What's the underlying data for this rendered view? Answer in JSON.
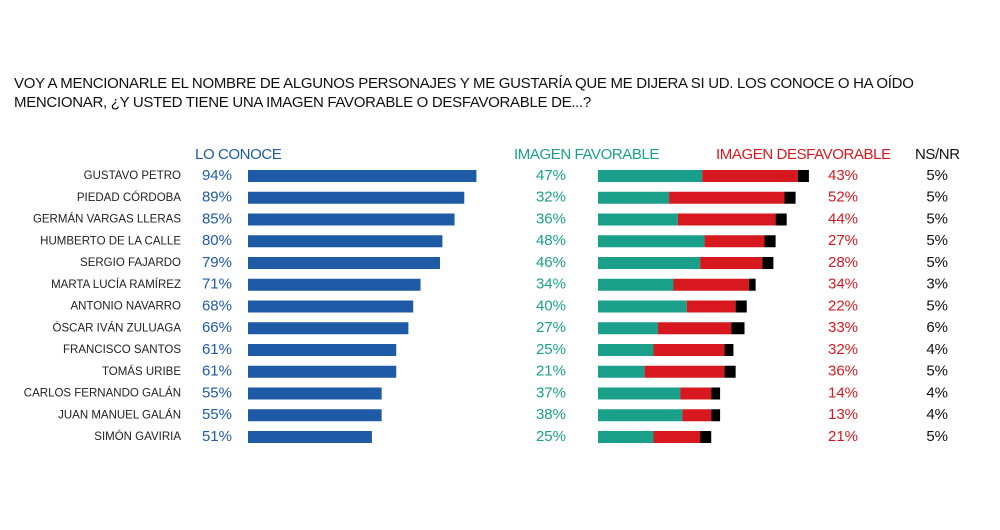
{
  "title": "VOY A MENCIONARLE EL NOMBRE DE ALGUNOS PERSONAJES Y ME GUSTARÍA QUE ME DIJERA SI UD. LOS CONOCE O HA OÍDO MENCIONAR, ¿Y USTED TIENE UNA IMAGEN FAVORABLE O DESFAVORABLE DE...?",
  "chart_data": [
    {
      "type": "bar",
      "orientation": "horizontal",
      "categories": [
        "GUSTAVO PETRO",
        "PIEDAD CÓRDOBA",
        "GERMÁN VARGAS LLERAS",
        "HUMBERTO DE LA CALLE",
        "SERGIO FAJARDO",
        "MARTA LUCÍA RAMÍREZ",
        "ANTONIO NAVARRO",
        "ÓSCAR IVÁN ZULUAGA",
        "FRANCISCO SANTOS",
        "TOMÁS URIBE",
        "CARLOS FERNANDO GALÁN",
        "JUAN MANUEL GALÁN",
        "SIMÓN GAVIRIA"
      ],
      "series": [
        {
          "name": "LO CONOCE",
          "color": "#1f5aa6",
          "values": [
            94,
            89,
            85,
            80,
            79,
            71,
            68,
            66,
            61,
            61,
            55,
            55,
            51
          ],
          "value_labels": [
            "94%",
            "89%",
            "85%",
            "80%",
            "79%",
            "71%",
            "68%",
            "66%",
            "61%",
            "61%",
            "55%",
            "55%",
            "51%"
          ]
        }
      ],
      "xlim": [
        0,
        100
      ]
    },
    {
      "type": "stacked_bar",
      "orientation": "horizontal",
      "series": [
        {
          "name": "IMAGEN FAVORABLE",
          "color": "#1aa08a",
          "values": [
            47,
            32,
            36,
            48,
            46,
            34,
            40,
            27,
            25,
            21,
            37,
            38,
            25
          ],
          "value_labels": [
            "47%",
            "32%",
            "36%",
            "48%",
            "46%",
            "34%",
            "40%",
            "27%",
            "25%",
            "21%",
            "37%",
            "38%",
            "25%"
          ]
        },
        {
          "name": "IMAGEN DESFAVORABLE",
          "color": "#d7191f",
          "values": [
            43,
            52,
            44,
            27,
            28,
            34,
            22,
            33,
            32,
            36,
            14,
            13,
            21
          ],
          "value_labels": [
            "43%",
            "52%",
            "44%",
            "27%",
            "28%",
            "34%",
            "22%",
            "33%",
            "32%",
            "36%",
            "14%",
            "13%",
            "21%"
          ]
        },
        {
          "name": "NS/NR",
          "color": "#000000",
          "values": [
            5,
            5,
            5,
            5,
            5,
            3,
            5,
            6,
            4,
            5,
            4,
            4,
            5
          ],
          "value_labels": [
            "5%",
            "5%",
            "5%",
            "5%",
            "5%",
            "3%",
            "5%",
            "6%",
            "4%",
            "5%",
            "4%",
            "4%",
            "5%"
          ]
        }
      ],
      "xlim": [
        0,
        100
      ]
    }
  ]
}
